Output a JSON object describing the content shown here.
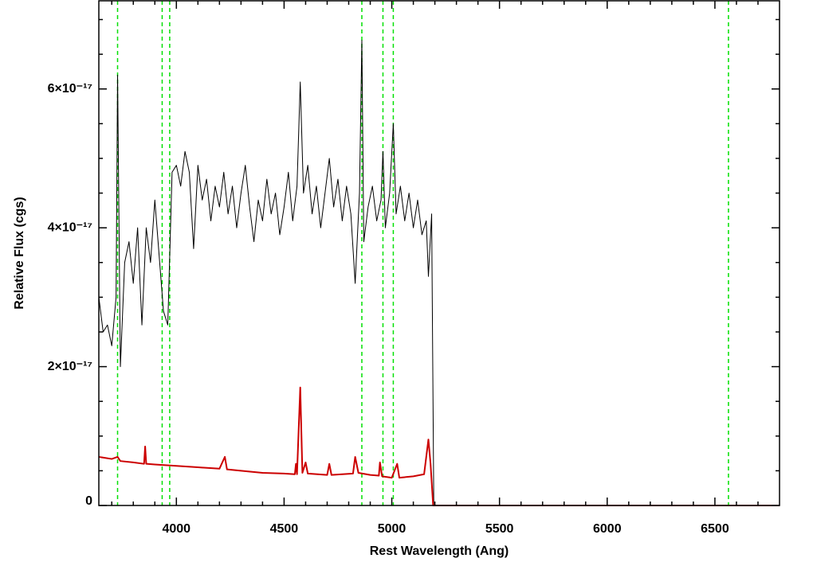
{
  "chart_data": {
    "type": "line",
    "x_label": "Rest Wavelength (Ang)",
    "y_label": "Relative Flux (cgs)",
    "xlim": [
      3640,
      6800
    ],
    "ylim": [
      0,
      7.27e-17
    ],
    "xticks": [
      4000,
      4500,
      5000,
      5500,
      6000,
      6500
    ],
    "yticks": [
      0,
      {
        "value": 2e-17,
        "label": "2×10⁻¹⁷"
      },
      {
        "value": 4e-17,
        "label": "4×10⁻¹⁷"
      },
      {
        "value": 6e-17,
        "label": "6×10⁻¹⁷"
      }
    ],
    "xminorticks": [
      3700,
      3800,
      3900,
      4100,
      4200,
      4300,
      4400,
      4600,
      4700,
      4800,
      4900,
      5100,
      5200,
      5300,
      5400,
      5600,
      5700,
      5800,
      5900,
      6100,
      6200,
      6300,
      6400,
      6600,
      6700
    ],
    "yminorticks": [
      5e-18,
      1e-17,
      1.5e-17,
      2.5e-17,
      3e-17,
      3.5e-17,
      4.5e-17,
      5e-17,
      5.5e-17,
      6.5e-17,
      7e-17
    ],
    "vlines": {
      "color": "#00e000",
      "values": [
        3727,
        3934,
        3969,
        4861,
        4959,
        5007,
        6563
      ]
    },
    "series": [
      {
        "color": "#000000",
        "width": 1,
        "x": [
          3640,
          3660,
          3680,
          3700,
          3720,
          3727,
          3740,
          3760,
          3780,
          3800,
          3820,
          3840,
          3860,
          3880,
          3900,
          3920,
          3940,
          3960,
          3980,
          4000,
          4020,
          4040,
          4060,
          4080,
          4100,
          4120,
          4140,
          4160,
          4180,
          4200,
          4220,
          4240,
          4260,
          4280,
          4300,
          4320,
          4340,
          4360,
          4380,
          4400,
          4420,
          4440,
          4460,
          4480,
          4500,
          4520,
          4540,
          4560,
          4575,
          4590,
          4610,
          4630,
          4650,
          4670,
          4690,
          4710,
          4730,
          4750,
          4770,
          4790,
          4810,
          4830,
          4850,
          4861,
          4870,
          4890,
          4910,
          4930,
          4950,
          4959,
          4970,
          4990,
          5007,
          5020,
          5040,
          5060,
          5080,
          5100,
          5120,
          5140,
          5160,
          5170,
          5185,
          5195,
          6800
        ],
        "values": [
          3e-17,
          2.5e-17,
          2.6e-17,
          2.3e-17,
          3e-17,
          6.2e-17,
          2e-17,
          3.5e-17,
          3.8e-17,
          3.2e-17,
          4e-17,
          2.6e-17,
          4e-17,
          3.5e-17,
          4.4e-17,
          3.6e-17,
          2.8e-17,
          2.6e-17,
          4.8e-17,
          4.9e-17,
          4.6e-17,
          5.1e-17,
          4.8e-17,
          3.7e-17,
          4.9e-17,
          4.4e-17,
          4.7e-17,
          4.1e-17,
          4.6e-17,
          4.3e-17,
          4.8e-17,
          4.2e-17,
          4.6e-17,
          4e-17,
          4.5e-17,
          4.9e-17,
          4.3e-17,
          3.8e-17,
          4.4e-17,
          4.1e-17,
          4.7e-17,
          4.2e-17,
          4.5e-17,
          3.9e-17,
          4.3e-17,
          4.8e-17,
          4.1e-17,
          4.6e-17,
          6.1e-17,
          4.5e-17,
          4.9e-17,
          4.2e-17,
          4.6e-17,
          4e-17,
          4.5e-17,
          5e-17,
          4.3e-17,
          4.7e-17,
          4.1e-17,
          4.6e-17,
          4.2e-17,
          3.2e-17,
          4.5e-17,
          6.7e-17,
          3.8e-17,
          4.3e-17,
          4.6e-17,
          4.1e-17,
          4.4e-17,
          5.1e-17,
          4e-17,
          4.5e-17,
          5.5e-17,
          4.2e-17,
          4.6e-17,
          4.1e-17,
          4.5e-17,
          4e-17,
          4.4e-17,
          3.9e-17,
          4.1e-17,
          3.3e-17,
          4.2e-17,
          0,
          0
        ]
      },
      {
        "color": "#cc0000",
        "width": 2,
        "x": [
          3640,
          3700,
          3727,
          3740,
          3800,
          3850,
          3855,
          3860,
          3900,
          4000,
          4100,
          4200,
          4225,
          4235,
          4300,
          4400,
          4500,
          4550,
          4555,
          4560,
          4575,
          4585,
          4600,
          4610,
          4700,
          4710,
          4720,
          4820,
          4830,
          4845,
          4900,
          4940,
          4945,
          4955,
          5000,
          5025,
          5035,
          5100,
          5150,
          5170,
          5180,
          5192,
          6800
        ],
        "values": [
          7e-18,
          6.7e-18,
          7e-18,
          6.4e-18,
          6.2e-18,
          6e-18,
          8.5e-18,
          6e-18,
          5.9e-18,
          5.7e-18,
          5.5e-18,
          5.3e-18,
          7e-18,
          5.2e-18,
          5e-18,
          4.7e-18,
          4.6e-18,
          4.5e-18,
          6e-18,
          4.5e-18,
          1.7e-17,
          4.7e-18,
          6.2e-18,
          4.6e-18,
          4.4e-18,
          6e-18,
          4.4e-18,
          4.6e-18,
          7e-18,
          4.7e-18,
          4.4e-18,
          4.3e-18,
          6.2e-18,
          4.2e-18,
          4e-18,
          6e-18,
          4e-18,
          4.2e-18,
          4.5e-18,
          9.5e-18,
          6e-18,
          0,
          0
        ]
      }
    ]
  }
}
